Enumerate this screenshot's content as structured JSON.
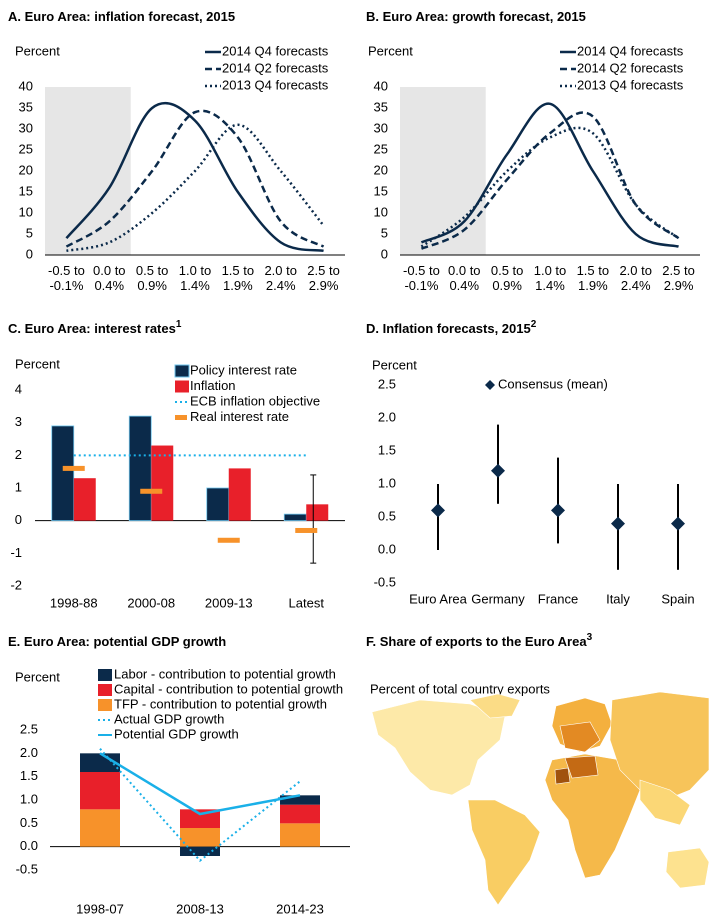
{
  "chart_data": [
    {
      "type": "line",
      "title": "A. Euro Area: inflation forecast, 2015",
      "ylabel": "Percent",
      "categories": [
        "-0.5 to -0.1%",
        "0.0 to 0.4%",
        "0.5 to 0.9%",
        "1.0 to 1.4%",
        "1.5 to 1.9%",
        "2.0 to 2.4%",
        "2.5 to 2.9%"
      ],
      "series": [
        {
          "name": "2014 Q4 forecasts",
          "color": "#0b2a4a",
          "dash": "solid",
          "values": [
            4,
            16,
            35,
            32,
            15,
            3,
            1
          ]
        },
        {
          "name": "2014 Q2 forecasts",
          "color": "#0b2a4a",
          "dash": "dashed",
          "values": [
            2,
            8,
            20,
            34,
            28,
            8,
            2
          ]
        },
        {
          "name": "2013 Q4 forecasts",
          "color": "#0b2a4a",
          "dash": "dotted",
          "values": [
            1,
            3,
            10,
            20,
            31,
            20,
            7
          ]
        }
      ],
      "ylim": [
        0,
        40
      ],
      "yticks": [
        0,
        5,
        10,
        15,
        20,
        25,
        30,
        35,
        40
      ]
    },
    {
      "type": "line",
      "title": "B. Euro Area: growth forecast, 2015",
      "ylabel": "Percent",
      "categories": [
        "-0.5 to -0.1%",
        "0.0 to 0.4%",
        "0.5 to 0.9%",
        "1.0 to 1.4%",
        "1.5 to 1.9%",
        "2.0 to 2.4%",
        "2.5 to 2.9%"
      ],
      "series": [
        {
          "name": "2014 Q4 forecasts",
          "color": "#0b2a4a",
          "dash": "solid",
          "values": [
            3,
            8,
            24,
            36,
            20,
            5,
            2
          ]
        },
        {
          "name": "2014 Q2 forecasts",
          "color": "#0b2a4a",
          "dash": "dashed",
          "values": [
            1.5,
            6,
            18,
            29,
            33,
            12,
            4
          ]
        },
        {
          "name": "2013 Q4 forecasts",
          "color": "#0b2a4a",
          "dash": "dotted",
          "values": [
            2,
            9,
            20,
            28,
            29,
            12,
            4
          ]
        }
      ],
      "ylim": [
        0,
        40
      ],
      "yticks": [
        0,
        5,
        10,
        15,
        20,
        25,
        30,
        35,
        40
      ]
    },
    {
      "type": "bar",
      "title": "C. Euro Area: interest rates",
      "title_note": "1",
      "ylabel": "Percent",
      "categories": [
        "1998-88",
        "2000-08",
        "2009-13",
        "Latest"
      ],
      "series": [
        {
          "name": "Policy interest rate",
          "color": "#0b2a4a",
          "values": [
            2.9,
            3.2,
            1.0,
            0.2
          ]
        },
        {
          "name": "Inflation",
          "color": "#e8202a",
          "values": [
            1.3,
            2.3,
            1.6,
            0.5
          ]
        },
        {
          "name": "ECB inflation objective",
          "color": "#1ab0e8",
          "kind": "line",
          "dash": "dotted",
          "values": [
            2,
            2,
            2,
            2
          ]
        },
        {
          "name": "Real interest rate",
          "color": "#f7922a",
          "kind": "marker",
          "values": [
            1.6,
            0.9,
            -0.6,
            -0.3
          ],
          "low": [
            null,
            null,
            null,
            -1.3
          ],
          "high": [
            null,
            null,
            null,
            1.4
          ]
        }
      ],
      "ylim": [
        -2,
        4
      ],
      "yticks": [
        -2,
        -1,
        0,
        1,
        2,
        3,
        4
      ]
    },
    {
      "type": "dot",
      "title": "D. Inflation forecasts, 2015",
      "title_note": "2",
      "ylabel": "Percent",
      "categories": [
        "Euro Area",
        "Germany",
        "France",
        "Italy",
        "Spain"
      ],
      "series": [
        {
          "name": "Consensus (mean)",
          "color": "#0b2a4a",
          "values": [
            0.6,
            1.2,
            0.6,
            0.4,
            0.4
          ],
          "low": [
            0,
            0.7,
            0.1,
            -0.3,
            -0.3
          ],
          "high": [
            1.0,
            1.9,
            1.4,
            1.0,
            1.0
          ]
        }
      ],
      "ylim": [
        -0.5,
        2.5
      ],
      "yticks": [
        -0.5,
        {
          "value": 0,
          "label": "0.0"
        },
        0.5,
        {
          "value": 1,
          "label": "1.0"
        },
        1.5,
        {
          "value": 2,
          "label": "2.0"
        },
        2.5
      ]
    },
    {
      "type": "stacked_bar",
      "title": "E. Euro Area: potential GDP growth",
      "ylabel": "Percent",
      "categories": [
        "1998-07",
        "2008-13",
        "2014-23"
      ],
      "series": [
        {
          "name": "Labor - contribution to potential growth",
          "color": "#0b2a4a",
          "values": [
            0.4,
            -0.2,
            0.2
          ]
        },
        {
          "name": "Capital - contribution to potential growth",
          "color": "#e8202a",
          "values": [
            0.8,
            0.4,
            0.4
          ]
        },
        {
          "name": "TFP - contribution to potential growth",
          "color": "#f7922a",
          "values": [
            0.8,
            0.4,
            0.5
          ]
        },
        {
          "name": "Actual GDP growth",
          "color": "#1ab0e8",
          "kind": "line",
          "dash": "dotted",
          "values": [
            2.1,
            -0.3,
            1.4
          ]
        },
        {
          "name": "Potential GDP growth",
          "color": "#1ab0e8",
          "kind": "line",
          "dash": "solid",
          "values": [
            2.0,
            0.7,
            1.1
          ]
        }
      ],
      "ylim": [
        -0.5,
        2.5
      ],
      "yticks": [
        -0.5,
        {
          "value": 0,
          "label": "0.0"
        },
        0.5,
        {
          "value": 1,
          "label": "1.0"
        },
        1.5,
        {
          "value": 2,
          "label": "2.0"
        },
        2.5
      ]
    },
    {
      "type": "map",
      "title": "F. Share of exports to the Euro Area",
      "title_note": "3",
      "subtitle": "Percent of total country exports"
    }
  ]
}
